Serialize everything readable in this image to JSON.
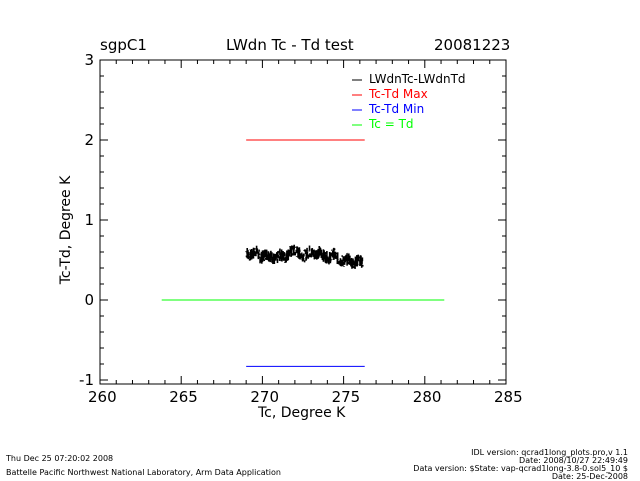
{
  "header": {
    "site": "sgpC1",
    "title": "LWdn Tc - Td test",
    "date": "20081223"
  },
  "chart_data": {
    "type": "scatter",
    "title": "LWdn Tc - Td test",
    "xlabel": "Tc, Degree K",
    "ylabel": "Tc-Td, Degree K",
    "xlim": [
      260,
      285
    ],
    "ylim": [
      -1.05,
      3
    ],
    "xticks": [
      260,
      265,
      270,
      275,
      280,
      285
    ],
    "yticks": [
      -1,
      0,
      1,
      2,
      3
    ],
    "legend_position": "top-right",
    "series": [
      {
        "name": "LWdnTc-LWdnTd",
        "kind": "points",
        "color": "#000000",
        "x_range": [
          269.0,
          276.2
        ],
        "points": [
          [
            269.0,
            0.6
          ],
          [
            269.3,
            0.55
          ],
          [
            269.6,
            0.62
          ],
          [
            269.9,
            0.52
          ],
          [
            270.2,
            0.58
          ],
          [
            270.5,
            0.55
          ],
          [
            270.8,
            0.5
          ],
          [
            271.1,
            0.57
          ],
          [
            271.4,
            0.53
          ],
          [
            271.7,
            0.6
          ],
          [
            272.0,
            0.62
          ],
          [
            272.3,
            0.58
          ],
          [
            272.6,
            0.55
          ],
          [
            272.9,
            0.61
          ],
          [
            273.2,
            0.57
          ],
          [
            273.5,
            0.6
          ],
          [
            273.8,
            0.55
          ],
          [
            274.1,
            0.52
          ],
          [
            274.4,
            0.58
          ],
          [
            274.7,
            0.5
          ],
          [
            275.0,
            0.48
          ],
          [
            275.3,
            0.52
          ],
          [
            275.6,
            0.45
          ],
          [
            275.9,
            0.5
          ],
          [
            276.2,
            0.47
          ]
        ],
        "spread": 0.08
      },
      {
        "name": "Tc-Td Max",
        "kind": "line",
        "color": "#ff0000",
        "x": [
          269.0,
          276.3
        ],
        "y": [
          2.0,
          2.0
        ]
      },
      {
        "name": "Tc-Td Min",
        "kind": "line",
        "color": "#0000ff",
        "x": [
          269.0,
          276.3
        ],
        "y": [
          -0.83,
          -0.83
        ]
      },
      {
        "name": "Tc = Td",
        "kind": "line",
        "color": "#00ff00",
        "x": [
          263.8,
          281.2
        ],
        "y": [
          0,
          0
        ]
      }
    ]
  },
  "footer": {
    "timestamp": "Thu Dec 25 07:20:02 2008",
    "org": "Battelle Pacific Northwest National Laboratory, Arm Data Application",
    "idl": "IDL version: qcrad1long_plots.pro,v 1.1",
    "idl_date": "Date: 2008/10/27 22:49:49",
    "data_version": "Data version: $State: vap-qcrad1long-3.8-0.sol5_10 $",
    "data_date": "Date: 25-Dec-2008"
  }
}
